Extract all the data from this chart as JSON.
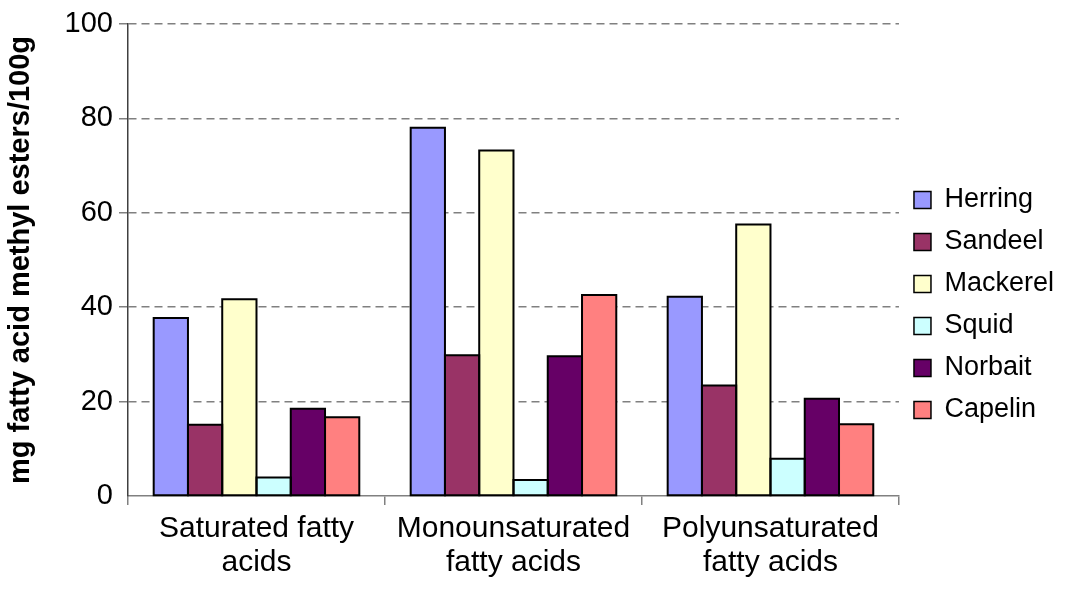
{
  "chart_data": {
    "type": "bar",
    "ylabel": "mg fatty acid methyl esters/100g",
    "categories": [
      "Saturated fatty acids",
      "Monounsaturated fatty acids",
      "Polyunsaturated fatty acids"
    ],
    "series": [
      {
        "name": "Herring",
        "color": "#9999ff",
        "values": [
          37.7,
          78.0,
          42.2
        ]
      },
      {
        "name": "Sandeel",
        "color": "#993366",
        "values": [
          15.1,
          29.8,
          23.4
        ]
      },
      {
        "name": "Mackerel",
        "color": "#ffffcc",
        "values": [
          41.7,
          73.2,
          57.5
        ]
      },
      {
        "name": "Squid",
        "color": "#ccffff",
        "values": [
          3.9,
          3.4,
          7.9
        ]
      },
      {
        "name": "Norbait",
        "color": "#660066",
        "values": [
          18.5,
          29.6,
          20.6
        ]
      },
      {
        "name": "Capelin",
        "color": "#ff8080",
        "values": [
          16.7,
          42.6,
          15.2
        ]
      }
    ],
    "ylim": [
      0,
      100
    ],
    "yticks": [
      0,
      20,
      40,
      60,
      80,
      100
    ],
    "grid": "y",
    "legend": "right"
  }
}
